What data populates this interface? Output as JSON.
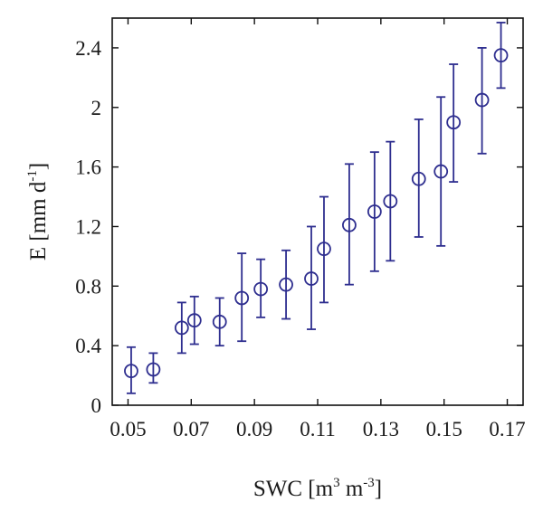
{
  "chart_data": {
    "type": "scatter",
    "title": "",
    "xlabel": {
      "base": "SWC [m",
      "sup1": "3",
      "mid": " m",
      "sup2": "-3",
      "end": "]"
    },
    "ylabel": {
      "base": "E [mm d",
      "sup": "-1",
      "end": "]"
    },
    "xlim": [
      0.045,
      0.175
    ],
    "ylim": [
      0,
      2.6
    ],
    "xticks": [
      0.05,
      0.07,
      0.09,
      0.11,
      0.13,
      0.15,
      0.17
    ],
    "xtick_labels": [
      "0.05",
      "0.07",
      "0.09",
      "0.11",
      "0.13",
      "0.15",
      "0.17"
    ],
    "yticks": [
      0,
      0.4,
      0.8,
      1.2,
      1.6,
      2.0,
      2.4
    ],
    "ytick_labels": [
      "0",
      "0.4",
      "0.8",
      "1.2",
      "1.6",
      "2",
      "2.4"
    ],
    "marker": "open-circle",
    "color": "#2e2e8f",
    "grid": false,
    "legend": "none",
    "points": [
      {
        "x": 0.051,
        "y": 0.23,
        "lo": 0.08,
        "hi": 0.39
      },
      {
        "x": 0.058,
        "y": 0.24,
        "lo": 0.15,
        "hi": 0.35
      },
      {
        "x": 0.067,
        "y": 0.52,
        "lo": 0.35,
        "hi": 0.69
      },
      {
        "x": 0.071,
        "y": 0.57,
        "lo": 0.41,
        "hi": 0.73
      },
      {
        "x": 0.079,
        "y": 0.56,
        "lo": 0.4,
        "hi": 0.72
      },
      {
        "x": 0.086,
        "y": 0.72,
        "lo": 0.43,
        "hi": 1.02
      },
      {
        "x": 0.092,
        "y": 0.78,
        "lo": 0.59,
        "hi": 0.98
      },
      {
        "x": 0.1,
        "y": 0.81,
        "lo": 0.58,
        "hi": 1.04
      },
      {
        "x": 0.108,
        "y": 0.85,
        "lo": 0.51,
        "hi": 1.2
      },
      {
        "x": 0.112,
        "y": 1.05,
        "lo": 0.69,
        "hi": 1.4
      },
      {
        "x": 0.12,
        "y": 1.21,
        "lo": 0.81,
        "hi": 1.62
      },
      {
        "x": 0.128,
        "y": 1.3,
        "lo": 0.9,
        "hi": 1.7
      },
      {
        "x": 0.133,
        "y": 1.37,
        "lo": 0.97,
        "hi": 1.77
      },
      {
        "x": 0.142,
        "y": 1.52,
        "lo": 1.13,
        "hi": 1.92
      },
      {
        "x": 0.149,
        "y": 1.57,
        "lo": 1.07,
        "hi": 2.07
      },
      {
        "x": 0.153,
        "y": 1.9,
        "lo": 1.5,
        "hi": 2.29
      },
      {
        "x": 0.162,
        "y": 2.05,
        "lo": 1.69,
        "hi": 2.4
      },
      {
        "x": 0.168,
        "y": 2.35,
        "lo": 2.13,
        "hi": 2.57
      }
    ]
  }
}
